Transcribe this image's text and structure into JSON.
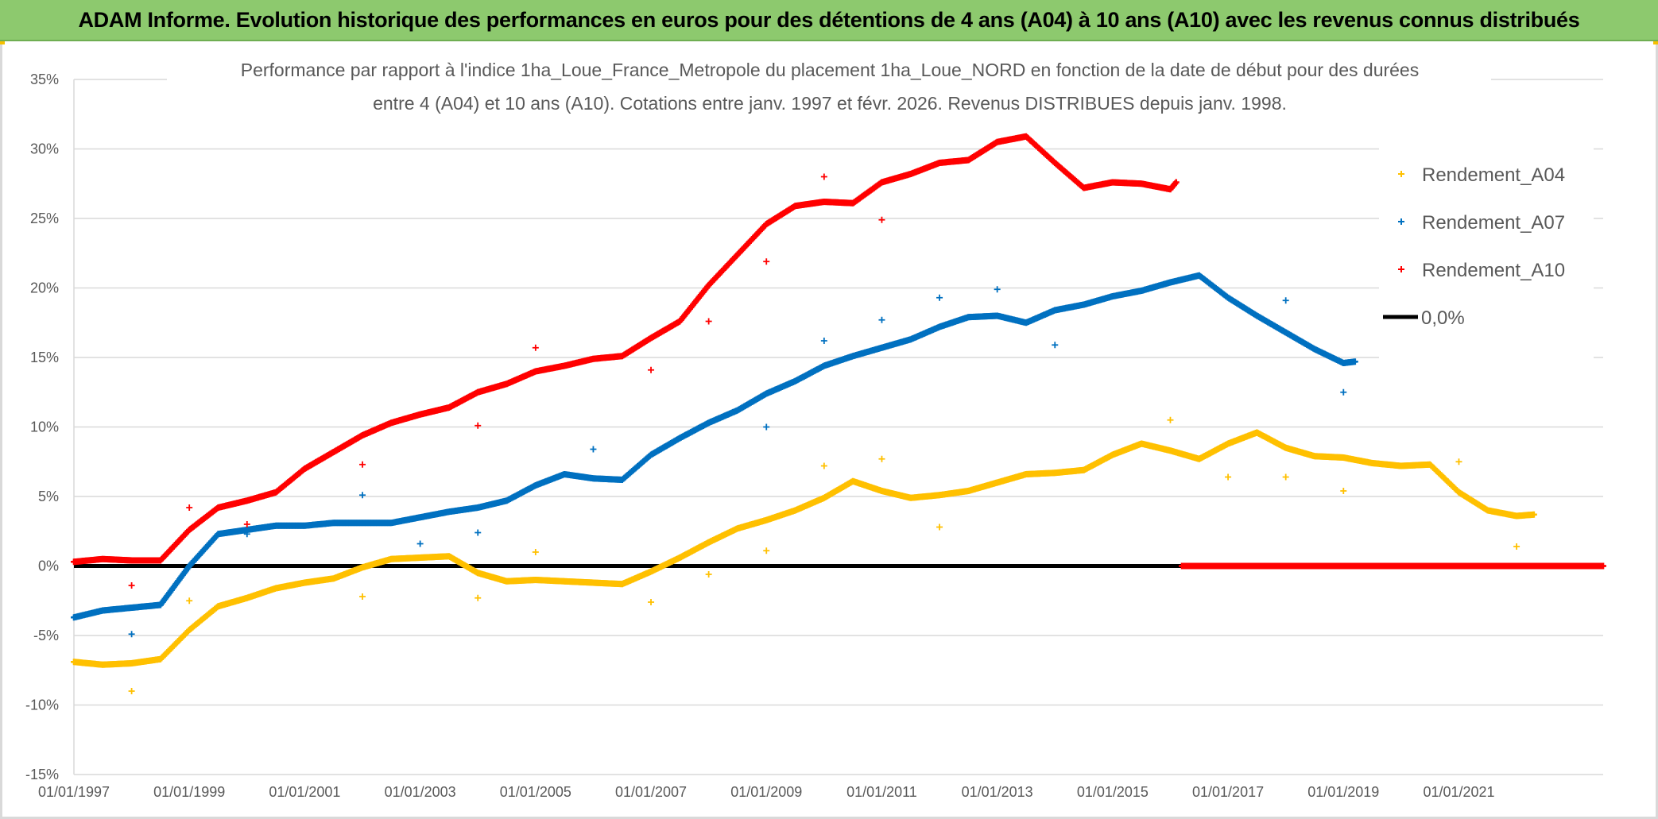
{
  "banner": {
    "title": "ADAM Informe. Evolution historique des performances en euros pour des détentions de 4 ans (A04) à 10 ans (A10) avec les revenus connus distribués"
  },
  "chart_data": {
    "type": "scatter",
    "title_line1": "Performance par rapport à l'indice 1ha_Loue_France_Metropole  du placement 1ha_Loue_NORD en fonction de la date de début pour des durées",
    "title_line2": "entre 4 (A04) et 10 ans (A10). Cotations entre janv. 1997 et févr. 2026. Revenus DISTRIBUES depuis janv. 1998.",
    "x_unit": "year (decimal)",
    "xlim": [
      1997,
      2023.5
    ],
    "ylim": [
      -15,
      35
    ],
    "y_ticks": [
      35,
      30,
      25,
      20,
      15,
      10,
      5,
      0,
      -5,
      -10,
      -15
    ],
    "y_tick_labels": [
      "35%",
      "30%",
      "25%",
      "20%",
      "15%",
      "10%",
      "5%",
      "0%",
      "-5%",
      "-10%",
      "-15%"
    ],
    "x_ticks": [
      1997,
      1999,
      2001,
      2003,
      2005,
      2007,
      2009,
      2011,
      2013,
      2015,
      2017,
      2019,
      2021
    ],
    "x_tick_labels": [
      "01/01/1997",
      "01/01/1999",
      "01/01/2001",
      "01/01/2003",
      "01/01/2005",
      "01/01/2007",
      "01/01/2009",
      "01/01/2011",
      "01/01/2013",
      "01/01/2015",
      "01/01/2017",
      "01/01/2019",
      "01/01/2021"
    ],
    "grid": "horizontal",
    "legend_position": "top-right",
    "series": [
      {
        "name": "Rendement_A04",
        "color": "#ffc000",
        "marker": "plus",
        "points": [
          [
            1997.0,
            -6.9
          ],
          [
            1997.5,
            -7.1
          ],
          [
            1998.0,
            -7.0
          ],
          [
            1998.5,
            -6.7
          ],
          [
            1999.0,
            -4.6
          ],
          [
            1999.5,
            -2.9
          ],
          [
            2000.0,
            -2.3
          ],
          [
            2000.5,
            -1.6
          ],
          [
            2001.0,
            -1.2
          ],
          [
            2001.5,
            -0.9
          ],
          [
            2002.0,
            -0.1
          ],
          [
            2002.5,
            0.5
          ],
          [
            2003.0,
            0.6
          ],
          [
            2003.5,
            0.7
          ],
          [
            2004.0,
            -0.5
          ],
          [
            2004.5,
            -1.1
          ],
          [
            2005.0,
            -1.0
          ],
          [
            2005.5,
            -1.1
          ],
          [
            2006.0,
            -1.2
          ],
          [
            2006.5,
            -1.3
          ],
          [
            2007.0,
            -0.4
          ],
          [
            2007.5,
            0.6
          ],
          [
            2008.0,
            1.7
          ],
          [
            2008.5,
            2.7
          ],
          [
            2009.0,
            3.3
          ],
          [
            2009.5,
            4.0
          ],
          [
            2010.0,
            4.9
          ],
          [
            2010.5,
            6.1
          ],
          [
            2011.0,
            5.4
          ],
          [
            2011.5,
            4.9
          ],
          [
            2012.0,
            5.1
          ],
          [
            2012.5,
            5.4
          ],
          [
            2013.0,
            6.0
          ],
          [
            2013.5,
            6.6
          ],
          [
            2014.0,
            6.7
          ],
          [
            2014.5,
            6.9
          ],
          [
            2015.0,
            8.0
          ],
          [
            2015.5,
            8.8
          ],
          [
            2016.0,
            8.3
          ],
          [
            2016.5,
            7.7
          ],
          [
            2017.0,
            8.8
          ],
          [
            2017.5,
            9.6
          ],
          [
            2018.0,
            8.5
          ],
          [
            2018.5,
            7.9
          ],
          [
            2019.0,
            7.8
          ],
          [
            2019.5,
            7.4
          ],
          [
            2020.0,
            7.2
          ],
          [
            2020.5,
            7.3
          ],
          [
            2021.0,
            5.3
          ],
          [
            2021.5,
            4.0
          ],
          [
            2022.0,
            3.6
          ],
          [
            2022.3,
            3.7
          ]
        ],
        "outliers": [
          [
            1998.0,
            -9.0
          ],
          [
            1999.0,
            -2.5
          ],
          [
            2002.0,
            -2.2
          ],
          [
            2004.0,
            -2.3
          ],
          [
            2005.0,
            1.0
          ],
          [
            2007.0,
            -2.6
          ],
          [
            2008.0,
            -0.6
          ],
          [
            2009.0,
            1.1
          ],
          [
            2010.0,
            7.2
          ],
          [
            2011.0,
            7.7
          ],
          [
            2012.0,
            2.8
          ],
          [
            2016.0,
            10.5
          ],
          [
            2017.0,
            6.4
          ],
          [
            2018.0,
            6.4
          ],
          [
            2019.0,
            5.4
          ],
          [
            2021.0,
            7.5
          ],
          [
            2022.0,
            1.4
          ]
        ]
      },
      {
        "name": "Rendement_A07",
        "color": "#0070c0",
        "marker": "plus",
        "points": [
          [
            1997.0,
            -3.7
          ],
          [
            1997.5,
            -3.2
          ],
          [
            1998.0,
            -3.0
          ],
          [
            1998.5,
            -2.8
          ],
          [
            1999.0,
            0.0
          ],
          [
            1999.5,
            2.3
          ],
          [
            2000.0,
            2.6
          ],
          [
            2000.5,
            2.9
          ],
          [
            2001.0,
            2.9
          ],
          [
            2001.5,
            3.1
          ],
          [
            2002.0,
            3.1
          ],
          [
            2002.5,
            3.1
          ],
          [
            2003.0,
            3.5
          ],
          [
            2003.5,
            3.9
          ],
          [
            2004.0,
            4.2
          ],
          [
            2004.5,
            4.7
          ],
          [
            2005.0,
            5.8
          ],
          [
            2005.5,
            6.6
          ],
          [
            2006.0,
            6.3
          ],
          [
            2006.5,
            6.2
          ],
          [
            2007.0,
            8.0
          ],
          [
            2007.5,
            9.2
          ],
          [
            2008.0,
            10.3
          ],
          [
            2008.5,
            11.2
          ],
          [
            2009.0,
            12.4
          ],
          [
            2009.5,
            13.3
          ],
          [
            2010.0,
            14.4
          ],
          [
            2010.5,
            15.1
          ],
          [
            2011.0,
            15.7
          ],
          [
            2011.5,
            16.3
          ],
          [
            2012.0,
            17.2
          ],
          [
            2012.5,
            17.9
          ],
          [
            2013.0,
            18.0
          ],
          [
            2013.5,
            17.5
          ],
          [
            2014.0,
            18.4
          ],
          [
            2014.5,
            18.8
          ],
          [
            2015.0,
            19.4
          ],
          [
            2015.5,
            19.8
          ],
          [
            2016.0,
            20.4
          ],
          [
            2016.5,
            20.9
          ],
          [
            2017.0,
            19.3
          ],
          [
            2017.5,
            18.0
          ],
          [
            2018.0,
            16.8
          ],
          [
            2018.5,
            15.6
          ],
          [
            2019.0,
            14.6
          ],
          [
            2019.2,
            14.7
          ]
        ],
        "outliers": [
          [
            1998.0,
            -4.9
          ],
          [
            2000.0,
            2.3
          ],
          [
            2002.0,
            5.1
          ],
          [
            2003.0,
            1.6
          ],
          [
            2004.0,
            2.4
          ],
          [
            2006.0,
            8.4
          ],
          [
            2009.0,
            10.0
          ],
          [
            2010.0,
            16.2
          ],
          [
            2011.0,
            17.7
          ],
          [
            2012.0,
            19.3
          ],
          [
            2013.0,
            19.9
          ],
          [
            2014.0,
            15.9
          ],
          [
            2018.0,
            19.1
          ],
          [
            2019.0,
            12.5
          ]
        ]
      },
      {
        "name": "Rendement_A10",
        "color": "#ff0000",
        "marker": "plus",
        "points": [
          [
            1997.0,
            0.3
          ],
          [
            1997.5,
            0.5
          ],
          [
            1998.0,
            0.4
          ],
          [
            1998.5,
            0.4
          ],
          [
            1999.0,
            2.6
          ],
          [
            1999.5,
            4.2
          ],
          [
            2000.0,
            4.7
          ],
          [
            2000.5,
            5.3
          ],
          [
            2001.0,
            7.0
          ],
          [
            2001.5,
            8.2
          ],
          [
            2002.0,
            9.4
          ],
          [
            2002.5,
            10.3
          ],
          [
            2003.0,
            10.9
          ],
          [
            2003.5,
            11.4
          ],
          [
            2004.0,
            12.5
          ],
          [
            2004.5,
            13.1
          ],
          [
            2005.0,
            14.0
          ],
          [
            2005.5,
            14.4
          ],
          [
            2006.0,
            14.9
          ],
          [
            2006.5,
            15.1
          ],
          [
            2007.0,
            16.4
          ],
          [
            2007.5,
            17.6
          ],
          [
            2008.0,
            20.2
          ],
          [
            2008.5,
            22.4
          ],
          [
            2009.0,
            24.6
          ],
          [
            2009.5,
            25.9
          ],
          [
            2010.0,
            26.2
          ],
          [
            2010.5,
            26.1
          ],
          [
            2011.0,
            27.6
          ],
          [
            2011.5,
            28.2
          ],
          [
            2012.0,
            29.0
          ],
          [
            2012.5,
            29.2
          ],
          [
            2013.0,
            30.5
          ],
          [
            2013.5,
            30.9
          ],
          [
            2014.0,
            29.0
          ],
          [
            2014.5,
            27.2
          ],
          [
            2015.0,
            27.6
          ],
          [
            2015.5,
            27.5
          ],
          [
            2016.0,
            27.1
          ],
          [
            2016.1,
            27.6
          ]
        ],
        "outliers": [
          [
            1998.0,
            -1.4
          ],
          [
            1999.0,
            4.2
          ],
          [
            2000.0,
            3.0
          ],
          [
            2002.0,
            7.3
          ],
          [
            2004.0,
            10.1
          ],
          [
            2005.0,
            15.7
          ],
          [
            2007.0,
            14.1
          ],
          [
            2008.0,
            17.6
          ],
          [
            2009.0,
            21.9
          ],
          [
            2010.0,
            28.0
          ],
          [
            2011.0,
            24.9
          ]
        ],
        "zero_segment": [
          2016.2,
          2023.5
        ]
      },
      {
        "name": "0,0%",
        "color": "#000000",
        "marker": "line",
        "points": [
          [
            1997.0,
            0
          ],
          [
            2016.2,
            0
          ]
        ]
      }
    ]
  }
}
